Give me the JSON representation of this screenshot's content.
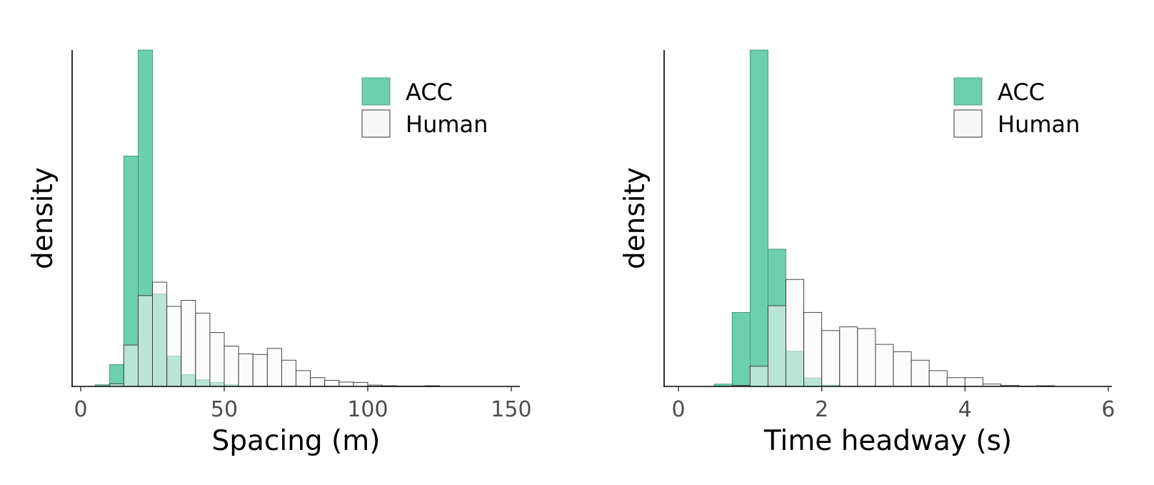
{
  "chart_data": [
    {
      "type": "histogram",
      "xlabel": "Spacing (m)",
      "ylabel": "density",
      "xticks": [
        0,
        50,
        100,
        150
      ],
      "xlim": [
        -3,
        153
      ],
      "ylim": [
        0,
        1.0
      ],
      "legend_position": "top-right",
      "bin_width": 5,
      "series": [
        {
          "name": "ACC",
          "color": "#6ccfae",
          "bins_start": [
            5,
            10,
            15,
            20,
            25,
            30,
            35,
            40,
            45,
            50
          ],
          "values": [
            0.005,
            0.065,
            0.685,
            1.0,
            0.275,
            0.09,
            0.035,
            0.02,
            0.012,
            0.005
          ]
        },
        {
          "name": "Human",
          "color": "#f7f7f7",
          "bins_start": [
            5,
            10,
            15,
            20,
            25,
            30,
            35,
            40,
            45,
            50,
            55,
            60,
            65,
            70,
            75,
            80,
            85,
            90,
            95,
            100,
            105,
            110,
            115,
            120,
            125
          ],
          "values": [
            0.0,
            0.008,
            0.123,
            0.27,
            0.31,
            0.238,
            0.256,
            0.218,
            0.16,
            0.12,
            0.097,
            0.095,
            0.113,
            0.078,
            0.047,
            0.026,
            0.018,
            0.013,
            0.012,
            0.004,
            0.002,
            0.001,
            0.001,
            0.002,
            0.0
          ]
        }
      ]
    },
    {
      "type": "histogram",
      "xlabel": "Time headway (s)",
      "ylabel": "density",
      "xticks": [
        0,
        2,
        4,
        6
      ],
      "xlim": [
        -0.2,
        6.05
      ],
      "ylim": [
        0,
        1.0
      ],
      "legend_position": "top-right",
      "bin_width": 0.25,
      "series": [
        {
          "name": "ACC",
          "color": "#6ccfae",
          "bins_start": [
            0.25,
            0.5,
            0.75,
            1.0,
            1.25,
            1.5,
            1.75,
            2.0
          ],
          "values": [
            0.0,
            0.007,
            0.22,
            1.0,
            0.408,
            0.105,
            0.025,
            0.004
          ]
        },
        {
          "name": "Human",
          "color": "#f7f7f7",
          "bins_start": [
            0.75,
            1.0,
            1.25,
            1.5,
            1.75,
            2.0,
            2.25,
            2.5,
            2.75,
            3.0,
            3.25,
            3.5,
            3.75,
            4.0,
            4.25,
            4.5,
            4.75,
            5.0
          ],
          "values": [
            0.003,
            0.06,
            0.24,
            0.318,
            0.22,
            0.166,
            0.177,
            0.172,
            0.125,
            0.103,
            0.078,
            0.047,
            0.026,
            0.026,
            0.007,
            0.003,
            0.001,
            0.002
          ]
        }
      ]
    }
  ]
}
